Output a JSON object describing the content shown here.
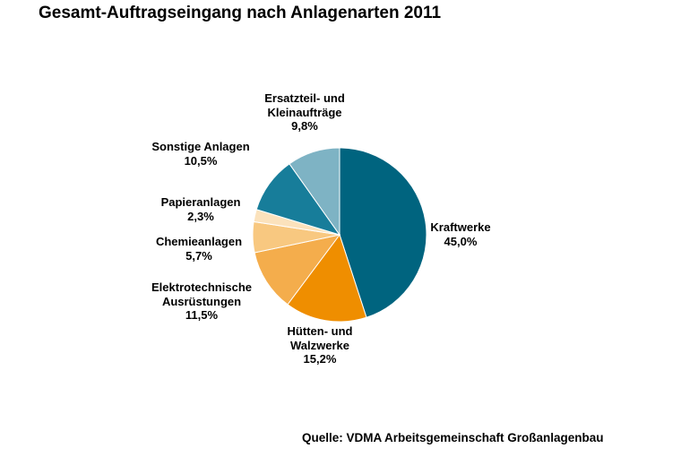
{
  "chart_data": {
    "type": "pie",
    "title": "Gesamt-Auftragseingang nach Anlagenarten 2011",
    "source": "Quelle: VDMA Arbeitsgemeinschaft Großanlagenbau",
    "slices": [
      {
        "label": [
          "Kraftwerke"
        ],
        "value_label": "45,0%",
        "value": 45.0,
        "color": "#00647f"
      },
      {
        "label": [
          "Hütten- und",
          "Walzwerke"
        ],
        "value_label": "15,2%",
        "value": 15.2,
        "color": "#ef8e00"
      },
      {
        "label": [
          "Elektrotechnische",
          "Ausrüstungen"
        ],
        "value_label": "11,5%",
        "value": 11.5,
        "color": "#f4ad4c"
      },
      {
        "label": [
          "Chemieanlagen"
        ],
        "value_label": "5,7%",
        "value": 5.7,
        "color": "#f8c880"
      },
      {
        "label": [
          "Papieranlagen"
        ],
        "value_label": "2,3%",
        "value": 2.3,
        "color": "#fbe2bc"
      },
      {
        "label": [
          "Sonstige Anlagen"
        ],
        "value_label": "10,5%",
        "value": 10.5,
        "color": "#177d9a"
      },
      {
        "label": [
          "Ersatzteil- und",
          "Kleinaufträge"
        ],
        "value_label": "9,8%",
        "value": 9.8,
        "color": "#7eb3c4"
      }
    ]
  }
}
